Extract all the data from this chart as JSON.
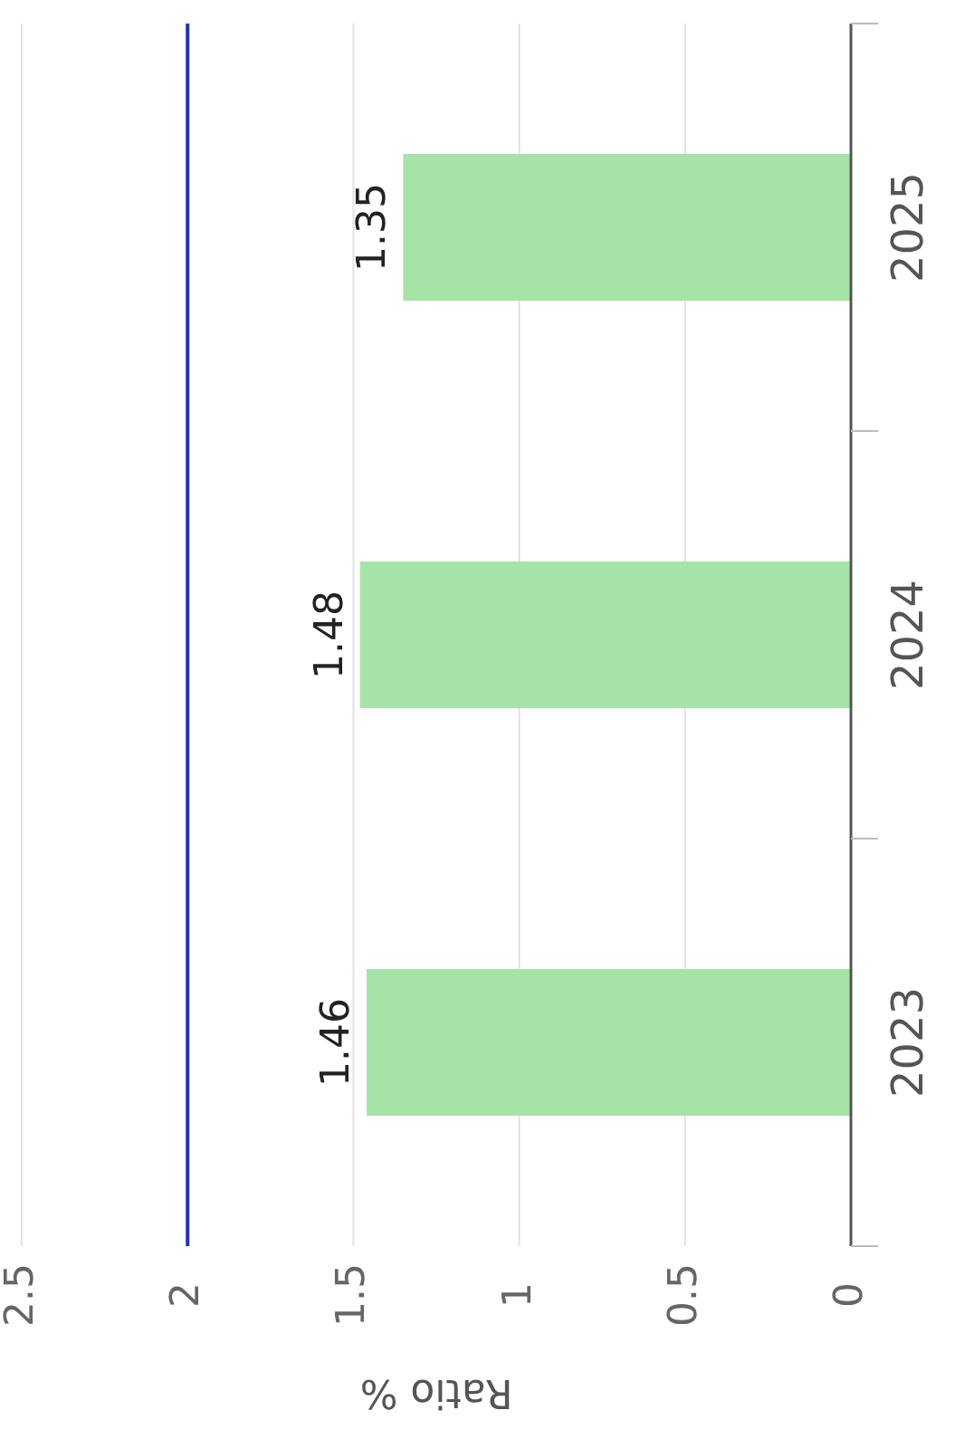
{
  "chart_data": {
    "type": "bar",
    "orientation": "horizontal",
    "xlabel": "Ratio %",
    "categories": [
      "2025",
      "2024",
      "2023"
    ],
    "values": [
      1.35,
      1.48,
      1.46
    ],
    "color": "#a6e3a7",
    "xlim": [
      2.5,
      0
    ],
    "xticks": [
      2.5,
      2,
      1.5,
      1,
      0.5,
      0
    ],
    "grid": "x",
    "data_labels": true,
    "ref_lines": [
      {
        "axis": "x",
        "value": 2,
        "color": "#2233bb"
      }
    ]
  }
}
